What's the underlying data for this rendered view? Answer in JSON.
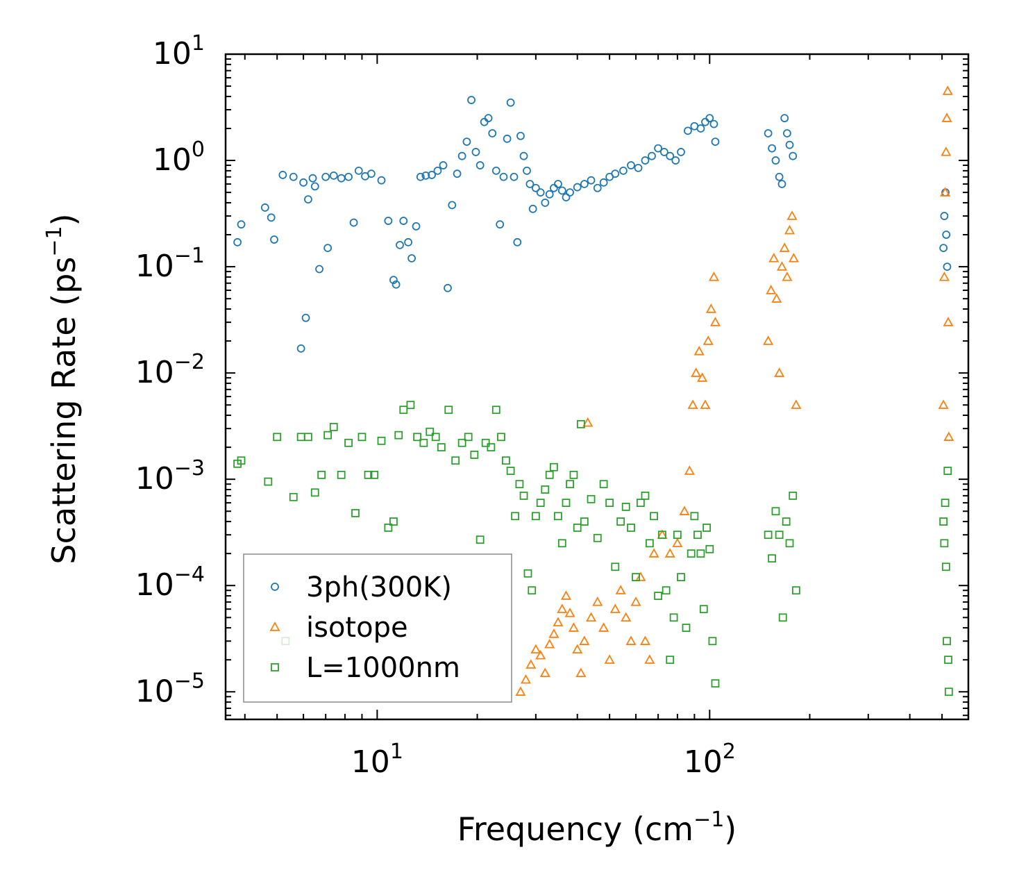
{
  "chart_data": {
    "type": "scatter",
    "title": "",
    "xlabel": "Frequency",
    "xlabel_unit_base": "cm",
    "xlabel_unit_exp": "−1",
    "ylabel": "Scattering Rate",
    "ylabel_unit_base": "ps",
    "ylabel_unit_exp": "−1",
    "xscale": "log",
    "yscale": "log",
    "xlim": [
      3.5,
      600
    ],
    "ylim": [
      5.5e-06,
      10
    ],
    "x_ticks": [
      {
        "value": 10,
        "base": "10",
        "exp": "1"
      },
      {
        "value": 100,
        "base": "10",
        "exp": "2"
      }
    ],
    "y_ticks": [
      {
        "value": 10,
        "base": "10",
        "exp": "1"
      },
      {
        "value": 1,
        "base": "10",
        "exp": "0"
      },
      {
        "value": 0.1,
        "base": "10",
        "exp": "−1"
      },
      {
        "value": 0.01,
        "base": "10",
        "exp": "−2"
      },
      {
        "value": 0.001,
        "base": "10",
        "exp": "−3"
      },
      {
        "value": 0.0001,
        "base": "10",
        "exp": "−4"
      },
      {
        "value": 1e-05,
        "base": "10",
        "exp": "−5"
      }
    ],
    "legend_position": "lower-left",
    "series": [
      {
        "name": "3ph(300K)",
        "marker": "circle",
        "color": "#1f77b4",
        "points": [
          [
            3.8,
            0.17
          ],
          [
            3.9,
            0.25
          ],
          [
            4.6,
            0.36
          ],
          [
            4.8,
            0.29
          ],
          [
            4.9,
            0.18
          ],
          [
            5.2,
            0.73
          ],
          [
            5.6,
            0.7
          ],
          [
            5.9,
            0.017
          ],
          [
            6.0,
            0.62
          ],
          [
            6.1,
            0.033
          ],
          [
            6.2,
            0.43
          ],
          [
            6.4,
            0.68
          ],
          [
            6.5,
            0.57
          ],
          [
            6.7,
            0.095
          ],
          [
            7.0,
            0.7
          ],
          [
            7.1,
            0.15
          ],
          [
            7.4,
            0.72
          ],
          [
            7.8,
            0.68
          ],
          [
            8.2,
            0.7
          ],
          [
            8.5,
            0.26
          ],
          [
            8.8,
            0.8
          ],
          [
            9.2,
            0.71
          ],
          [
            9.6,
            0.75
          ],
          [
            10.3,
            0.65
          ],
          [
            10.8,
            0.27
          ],
          [
            11.2,
            0.075
          ],
          [
            11.4,
            0.068
          ],
          [
            11.7,
            0.16
          ],
          [
            12.0,
            0.27
          ],
          [
            12.4,
            0.17
          ],
          [
            12.7,
            0.12
          ],
          [
            13.1,
            0.24
          ],
          [
            13.5,
            0.7
          ],
          [
            14.0,
            0.72
          ],
          [
            14.6,
            0.73
          ],
          [
            15.2,
            0.8
          ],
          [
            15.8,
            0.9
          ],
          [
            16.3,
            0.063
          ],
          [
            16.8,
            0.38
          ],
          [
            17.4,
            0.75
          ],
          [
            18.0,
            1.1
          ],
          [
            18.6,
            1.5
          ],
          [
            19.2,
            3.7
          ],
          [
            19.8,
            1.2
          ],
          [
            20.4,
            0.9
          ],
          [
            21.0,
            2.3
          ],
          [
            21.6,
            2.5
          ],
          [
            22.2,
            1.8
          ],
          [
            22.8,
            0.8
          ],
          [
            23.4,
            0.25
          ],
          [
            24.0,
            0.7
          ],
          [
            24.6,
            1.6
          ],
          [
            25.2,
            3.5
          ],
          [
            25.8,
            0.7
          ],
          [
            26.4,
            0.17
          ],
          [
            27.0,
            1.7
          ],
          [
            27.6,
            1.1
          ],
          [
            28.2,
            0.8
          ],
          [
            28.8,
            0.6
          ],
          [
            29.4,
            0.35
          ],
          [
            30.0,
            0.55
          ],
          [
            31.0,
            0.5
          ],
          [
            32.0,
            0.4
          ],
          [
            33.0,
            0.48
          ],
          [
            34.0,
            0.55
          ],
          [
            35.0,
            0.6
          ],
          [
            36.0,
            0.52
          ],
          [
            37.0,
            0.45
          ],
          [
            38.0,
            0.5
          ],
          [
            40.0,
            0.56
          ],
          [
            42.0,
            0.6
          ],
          [
            44.0,
            0.65
          ],
          [
            46.0,
            0.55
          ],
          [
            48.0,
            0.62
          ],
          [
            50.0,
            0.7
          ],
          [
            52.0,
            0.75
          ],
          [
            55.0,
            0.8
          ],
          [
            58.0,
            0.9
          ],
          [
            61.0,
            0.85
          ],
          [
            64.0,
            1.0
          ],
          [
            67.0,
            1.1
          ],
          [
            70.0,
            1.3
          ],
          [
            73.0,
            1.2
          ],
          [
            76.0,
            1.1
          ],
          [
            79.0,
            1.0
          ],
          [
            82.0,
            1.2
          ],
          [
            86.0,
            1.9
          ],
          [
            90.0,
            2.1
          ],
          [
            94.0,
            2.0
          ],
          [
            97.0,
            2.3
          ],
          [
            100.0,
            2.5
          ],
          [
            103.0,
            2.2
          ],
          [
            104.0,
            1.5
          ],
          [
            150.0,
            1.8
          ],
          [
            154.0,
            1.3
          ],
          [
            158.0,
            1.0
          ],
          [
            162.0,
            0.7
          ],
          [
            165.0,
            0.6
          ],
          [
            168.0,
            2.5
          ],
          [
            171.0,
            1.8
          ],
          [
            174.0,
            1.4
          ],
          [
            178.0,
            1.1
          ],
          [
            505.0,
            0.15
          ],
          [
            508.0,
            0.3
          ],
          [
            512.0,
            0.5
          ],
          [
            515.0,
            0.2
          ],
          [
            518.0,
            0.1
          ]
        ]
      },
      {
        "name": "isotope",
        "marker": "triangle",
        "color": "#ff7f0e",
        "points": [
          [
            27.0,
            1e-05
          ],
          [
            28.0,
            1.3e-05
          ],
          [
            29.0,
            1.8e-05
          ],
          [
            30.0,
            2.5e-05
          ],
          [
            31.0,
            2.2e-05
          ],
          [
            32.0,
            1.5e-05
          ],
          [
            33.0,
            2.8e-05
          ],
          [
            34.0,
            3.5e-05
          ],
          [
            35.0,
            4.5e-05
          ],
          [
            36.0,
            6e-05
          ],
          [
            37.0,
            8e-05
          ],
          [
            38.0,
            5.5e-05
          ],
          [
            39.0,
            4e-05
          ],
          [
            40.0,
            2.5e-05
          ],
          [
            41.0,
            1.5e-05
          ],
          [
            42.0,
            3e-05
          ],
          [
            43.0,
            0.0034
          ],
          [
            44.0,
            5e-05
          ],
          [
            46.0,
            7e-05
          ],
          [
            48.0,
            4e-05
          ],
          [
            50.0,
            2e-05
          ],
          [
            52.0,
            6e-05
          ],
          [
            54.0,
            9e-05
          ],
          [
            56.0,
            5e-05
          ],
          [
            58.0,
            3e-05
          ],
          [
            60.0,
            7e-05
          ],
          [
            62.0,
            0.00012
          ],
          [
            64.0,
            3e-05
          ],
          [
            66.0,
            2e-05
          ],
          [
            68.0,
            0.0002
          ],
          [
            72.0,
            0.0003
          ],
          [
            76.0,
            0.0002
          ],
          [
            80.0,
            0.00025
          ],
          [
            84.0,
            0.0005
          ],
          [
            87.0,
            0.0012
          ],
          [
            89.0,
            0.005
          ],
          [
            91.0,
            0.01
          ],
          [
            93.0,
            0.016
          ],
          [
            95.0,
            0.009
          ],
          [
            97.0,
            0.005
          ],
          [
            99.0,
            0.02
          ],
          [
            101.0,
            0.04
          ],
          [
            103.0,
            0.08
          ],
          [
            104.0,
            0.03
          ],
          [
            150.0,
            0.02
          ],
          [
            153.0,
            0.06
          ],
          [
            156.0,
            0.12
          ],
          [
            159.0,
            0.05
          ],
          [
            162.0,
            0.01
          ],
          [
            165.0,
            0.1
          ],
          [
            168.0,
            0.15
          ],
          [
            171.0,
            0.08
          ],
          [
            174.0,
            0.22
          ],
          [
            177.0,
            0.3
          ],
          [
            179.0,
            0.12
          ],
          [
            182.0,
            0.005
          ],
          [
            505.0,
            0.005
          ],
          [
            508.0,
            0.08
          ],
          [
            511.0,
            0.5
          ],
          [
            514.0,
            1.2
          ],
          [
            517.0,
            2.5
          ],
          [
            520.0,
            4.5
          ],
          [
            522.0,
            0.03
          ],
          [
            524.0,
            0.0025
          ]
        ]
      },
      {
        "name": "L=1000nm",
        "marker": "square",
        "color": "#2ca02c",
        "points": [
          [
            3.8,
            0.0014
          ],
          [
            3.9,
            0.0015
          ],
          [
            4.7,
            0.00095
          ],
          [
            5.0,
            0.0025
          ],
          [
            5.3,
            3e-05
          ],
          [
            5.6,
            0.00068
          ],
          [
            5.9,
            0.0025
          ],
          [
            6.2,
            0.0025
          ],
          [
            6.5,
            0.00075
          ],
          [
            6.8,
            0.0011
          ],
          [
            7.1,
            0.0026
          ],
          [
            7.4,
            0.0031
          ],
          [
            7.8,
            0.0011
          ],
          [
            8.2,
            0.0022
          ],
          [
            8.6,
            0.00048
          ],
          [
            9.0,
            0.0025
          ],
          [
            9.4,
            0.0011
          ],
          [
            9.8,
            0.0011
          ],
          [
            10.3,
            0.0023
          ],
          [
            10.8,
            0.00035
          ],
          [
            11.2,
            0.0004
          ],
          [
            11.6,
            0.0026
          ],
          [
            12.0,
            0.0045
          ],
          [
            12.6,
            0.005
          ],
          [
            13.2,
            0.0025
          ],
          [
            13.8,
            0.0022
          ],
          [
            14.4,
            0.0028
          ],
          [
            15.0,
            0.0025
          ],
          [
            15.6,
            0.002
          ],
          [
            16.4,
            0.0045
          ],
          [
            17.2,
            0.0015
          ],
          [
            18.0,
            0.0022
          ],
          [
            18.8,
            0.0025
          ],
          [
            19.6,
            0.0017
          ],
          [
            20.4,
            0.00027
          ],
          [
            21.2,
            0.0022
          ],
          [
            22.0,
            0.002
          ],
          [
            22.8,
            0.0045
          ],
          [
            23.6,
            0.0025
          ],
          [
            24.4,
            0.0015
          ],
          [
            25.2,
            0.0012
          ],
          [
            26.0,
            0.00045
          ],
          [
            26.8,
            0.0009
          ],
          [
            27.6,
            0.0007
          ],
          [
            28.4,
            0.00013
          ],
          [
            29.2,
            9e-05
          ],
          [
            30.0,
            0.00045
          ],
          [
            31.0,
            0.0006
          ],
          [
            32.0,
            0.0008
          ],
          [
            33.0,
            0.0011
          ],
          [
            34.0,
            0.0013
          ],
          [
            35.0,
            0.00045
          ],
          [
            36.0,
            0.00025
          ],
          [
            37.0,
            0.0006
          ],
          [
            38.0,
            0.0009
          ],
          [
            39.0,
            0.0011
          ],
          [
            40.0,
            0.00035
          ],
          [
            41.0,
            0.0033
          ],
          [
            42.0,
            0.0004
          ],
          [
            44.0,
            0.00065
          ],
          [
            46.0,
            0.00028
          ],
          [
            48.0,
            0.0009
          ],
          [
            50.0,
            0.0006
          ],
          [
            52.0,
            0.00015
          ],
          [
            54.0,
            0.0004
          ],
          [
            56.0,
            0.00055
          ],
          [
            58.0,
            0.00035
          ],
          [
            60.0,
            0.00012
          ],
          [
            62.0,
            0.0006
          ],
          [
            64.0,
            0.0007
          ],
          [
            66.0,
            0.00025
          ],
          [
            68.0,
            0.00045
          ],
          [
            70.0,
            8e-05
          ],
          [
            72.0,
            0.0003
          ],
          [
            74.0,
            9e-05
          ],
          [
            76.0,
            2e-05
          ],
          [
            78.0,
            5e-05
          ],
          [
            80.0,
            0.0003
          ],
          [
            82.0,
            0.00012
          ],
          [
            85.0,
            4e-05
          ],
          [
            88.0,
            0.0002
          ],
          [
            90.0,
            0.00045
          ],
          [
            92.0,
            0.0003
          ],
          [
            94.0,
            0.0002
          ],
          [
            96.0,
            6e-05
          ],
          [
            98.0,
            0.00035
          ],
          [
            100.0,
            0.00022
          ],
          [
            102.0,
            3e-05
          ],
          [
            104.0,
            1.2e-05
          ],
          [
            150.0,
            0.0003
          ],
          [
            154.0,
            0.00018
          ],
          [
            158.0,
            0.0005
          ],
          [
            162.0,
            0.0003
          ],
          [
            166.0,
            5e-05
          ],
          [
            170.0,
            0.0004
          ],
          [
            174.0,
            0.00025
          ],
          [
            178.0,
            0.0007
          ],
          [
            182.0,
            9e-05
          ],
          [
            505.0,
            0.0004
          ],
          [
            508.0,
            0.00025
          ],
          [
            511.0,
            0.0006
          ],
          [
            514.0,
            0.00015
          ],
          [
            517.0,
            3e-05
          ],
          [
            520.0,
            0.0012
          ],
          [
            522.0,
            2e-05
          ],
          [
            524.0,
            1e-05
          ]
        ]
      }
    ]
  }
}
